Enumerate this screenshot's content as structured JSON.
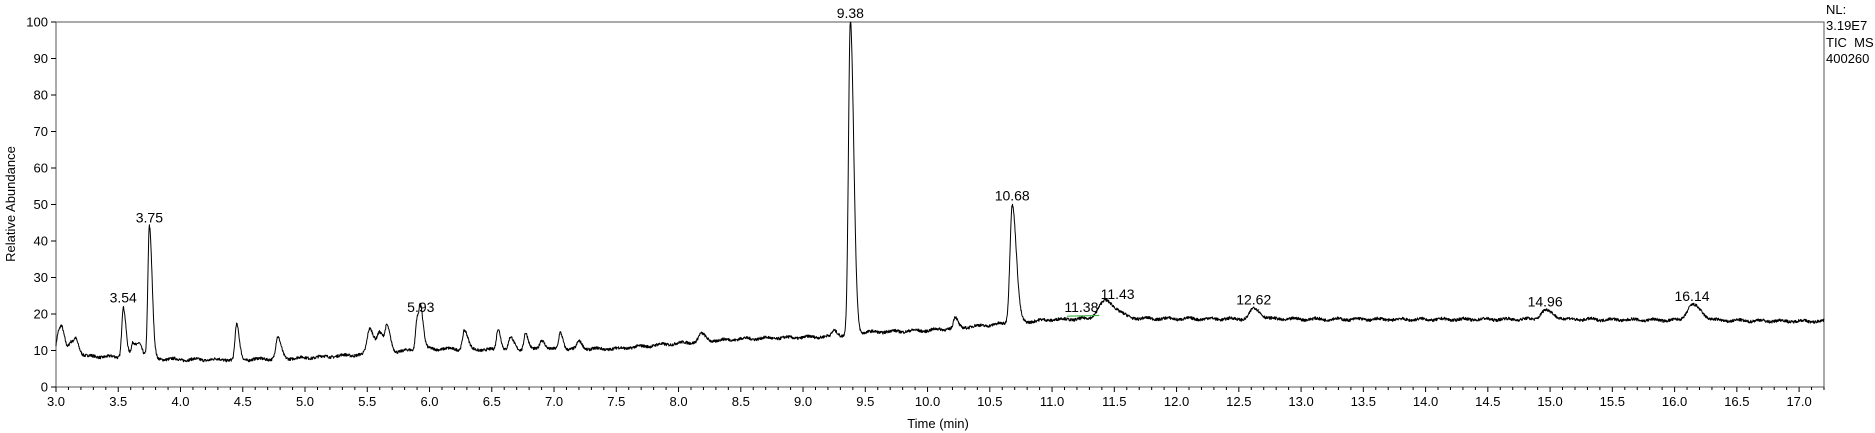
{
  "chart_data": {
    "type": "line",
    "title": "",
    "xlabel": "Time (min)",
    "ylabel": "Relative Abundance",
    "xlim": [
      3.0,
      17.2
    ],
    "ylim": [
      0,
      100
    ],
    "x_ticks": [
      3.0,
      3.5,
      4.0,
      4.5,
      5.0,
      5.5,
      6.0,
      6.5,
      7.0,
      7.5,
      8.0,
      8.5,
      9.0,
      9.5,
      10.0,
      10.5,
      11.0,
      11.5,
      12.0,
      12.5,
      13.0,
      13.5,
      14.0,
      14.5,
      15.0,
      15.5,
      16.0,
      16.5,
      17.0
    ],
    "x_tick_labels": [
      "3.0",
      "3.5",
      "4.0",
      "4.5",
      "5.0",
      "5.5",
      "6.0",
      "6.5",
      "7.0",
      "7.5",
      "8.0",
      "8.5",
      "9.0",
      "9.5",
      "10.0",
      "10.5",
      "11.0",
      "11.5",
      "12.0",
      "12.5",
      "13.0",
      "13.5",
      "14.0",
      "14.5",
      "15.0",
      "15.5",
      "16.0",
      "16.5",
      "17.0"
    ],
    "y_ticks": [
      0,
      10,
      20,
      30,
      40,
      50,
      60,
      70,
      80,
      90,
      100
    ],
    "y_tick_labels": [
      "0",
      "10",
      "20",
      "30",
      "40",
      "50",
      "60",
      "70",
      "80",
      "90",
      "100"
    ],
    "grid": false,
    "info_lines": [
      "NL:",
      "3.19E7",
      "TIC  MS",
      "400260"
    ],
    "line_color": "#000000",
    "integration_line_color": "#3cb043",
    "baseline_points": [
      [
        3.0,
        9.5
      ],
      [
        3.2,
        8.5
      ],
      [
        3.5,
        8.2
      ],
      [
        4.0,
        7.5
      ],
      [
        4.5,
        7.5
      ],
      [
        5.0,
        8.0
      ],
      [
        5.5,
        9.0
      ],
      [
        6.0,
        10.5
      ],
      [
        6.5,
        10.2
      ],
      [
        7.0,
        10.3
      ],
      [
        7.5,
        10.5
      ],
      [
        8.0,
        12.0
      ],
      [
        8.5,
        13.2
      ],
      [
        9.0,
        13.6
      ],
      [
        9.3,
        14.0
      ],
      [
        9.5,
        15.0
      ],
      [
        10.0,
        15.5
      ],
      [
        10.5,
        17.0
      ],
      [
        11.0,
        18.5
      ],
      [
        11.5,
        18.8
      ],
      [
        12.0,
        18.7
      ],
      [
        13.0,
        18.6
      ],
      [
        14.0,
        18.5
      ],
      [
        15.0,
        18.6
      ],
      [
        16.0,
        18.3
      ],
      [
        17.2,
        18.0
      ]
    ],
    "peaks": [
      {
        "rt": 3.02,
        "height": 15.0,
        "width": 0.015,
        "label": ""
      },
      {
        "rt": 3.05,
        "height": 13.5,
        "width": 0.015,
        "label": ""
      },
      {
        "rt": 3.12,
        "height": 12.0,
        "width": 0.015,
        "label": ""
      },
      {
        "rt": 3.16,
        "height": 12.5,
        "width": 0.015,
        "label": ""
      },
      {
        "rt": 3.54,
        "height": 22.0,
        "width": 0.012,
        "label": "3.54"
      },
      {
        "rt": 3.62,
        "height": 12.0,
        "width": 0.015,
        "label": ""
      },
      {
        "rt": 3.67,
        "height": 11.5,
        "width": 0.015,
        "label": ""
      },
      {
        "rt": 3.75,
        "height": 44.0,
        "width": 0.012,
        "label": "3.75"
      },
      {
        "rt": 4.45,
        "height": 17.0,
        "width": 0.012,
        "label": ""
      },
      {
        "rt": 4.78,
        "height": 13.5,
        "width": 0.015,
        "label": ""
      },
      {
        "rt": 5.52,
        "height": 16.0,
        "width": 0.02,
        "label": ""
      },
      {
        "rt": 5.6,
        "height": 14.5,
        "width": 0.02,
        "label": ""
      },
      {
        "rt": 5.66,
        "height": 15.5,
        "width": 0.015,
        "label": ""
      },
      {
        "rt": 5.9,
        "height": 19.0,
        "width": 0.012,
        "label": ""
      },
      {
        "rt": 5.93,
        "height": 19.5,
        "width": 0.012,
        "label": "5.93"
      },
      {
        "rt": 6.28,
        "height": 15.5,
        "width": 0.015,
        "label": ""
      },
      {
        "rt": 6.55,
        "height": 16.0,
        "width": 0.012,
        "label": ""
      },
      {
        "rt": 6.65,
        "height": 13.5,
        "width": 0.015,
        "label": ""
      },
      {
        "rt": 6.77,
        "height": 15.0,
        "width": 0.012,
        "label": ""
      },
      {
        "rt": 6.9,
        "height": 13.0,
        "width": 0.015,
        "label": ""
      },
      {
        "rt": 7.05,
        "height": 15.0,
        "width": 0.012,
        "label": ""
      },
      {
        "rt": 7.2,
        "height": 12.5,
        "width": 0.015,
        "label": ""
      },
      {
        "rt": 8.18,
        "height": 14.5,
        "width": 0.02,
        "label": ""
      },
      {
        "rt": 9.25,
        "height": 15.5,
        "width": 0.015,
        "label": ""
      },
      {
        "rt": 9.38,
        "height": 100.0,
        "width": 0.015,
        "label": "9.38"
      },
      {
        "rt": 10.22,
        "height": 19.0,
        "width": 0.012,
        "label": ""
      },
      {
        "rt": 10.68,
        "height": 50.0,
        "width": 0.018,
        "label": "10.68"
      },
      {
        "rt": 11.38,
        "height": 19.5,
        "width": 0.04,
        "label": "11.38"
      },
      {
        "rt": 11.43,
        "height": 23.0,
        "width": 0.05,
        "label": "11.43"
      },
      {
        "rt": 12.62,
        "height": 21.5,
        "width": 0.03,
        "label": "12.62"
      },
      {
        "rt": 14.96,
        "height": 21.0,
        "width": 0.035,
        "label": "14.96"
      },
      {
        "rt": 16.14,
        "height": 22.5,
        "width": 0.04,
        "label": "16.14"
      }
    ]
  }
}
